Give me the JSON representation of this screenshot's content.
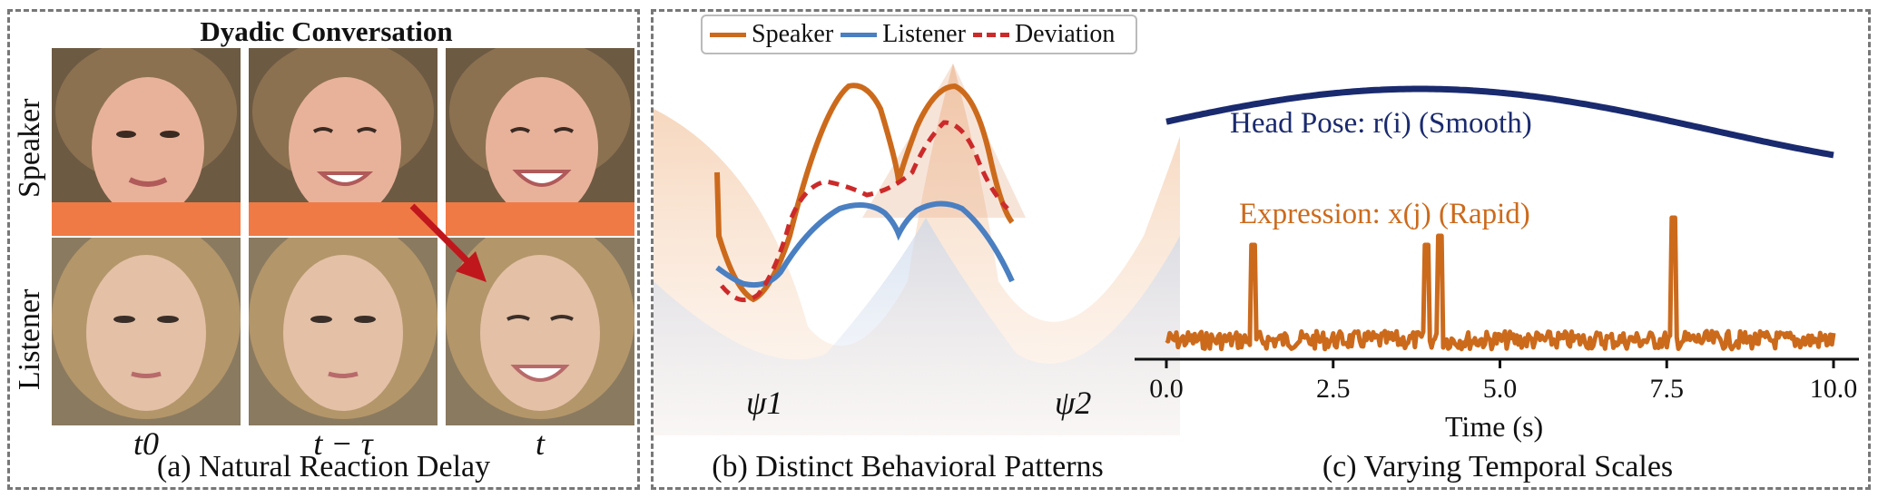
{
  "panel_a": {
    "title": "Dyadic Conversation",
    "row_labels": [
      "Speaker",
      "Listener"
    ],
    "time_labels": [
      "t0",
      "t − τ",
      "t"
    ],
    "caption": "(a) Natural Reaction Delay"
  },
  "panel_b": {
    "legend": [
      "Speaker",
      "Listener",
      "Deviation"
    ],
    "psi_left": "ψ1",
    "psi_right": "ψ2",
    "caption": "(b) Distinct Behavioral Patterns"
  },
  "panel_c": {
    "head_pose_label": "Head Pose: r(i) (Smooth)",
    "expression_label": "Expression: x(j) (Rapid)",
    "xlabel": "Time (s)",
    "caption": "(c) Varying Temporal Scales"
  },
  "colors": {
    "speaker": "#cc6a1c",
    "listener": "#4a7fc1",
    "deviation": "#cc2a2a",
    "head_pose": "#1a2a6e",
    "arrow": "#c0171d"
  },
  "chart_data": {
    "type": "line",
    "xlabel": "Time (s)",
    "xlim": [
      0,
      10
    ],
    "x_ticks": [
      0.0,
      2.5,
      5.0,
      7.5,
      10.0
    ],
    "tick_labels": [
      "0.0",
      "2.5",
      "5.0",
      "7.5",
      "10.0"
    ],
    "series": [
      {
        "name": "Head Pose: r(i) (Smooth)",
        "description": "smooth sinusoid peaking near t=3.8",
        "peak_time": 3.8
      },
      {
        "name": "Expression: x(j) (Rapid)",
        "description": "noisy baseline with sharp spikes",
        "spike_times": [
          1.3,
          3.9,
          4.1,
          7.6
        ]
      }
    ]
  }
}
